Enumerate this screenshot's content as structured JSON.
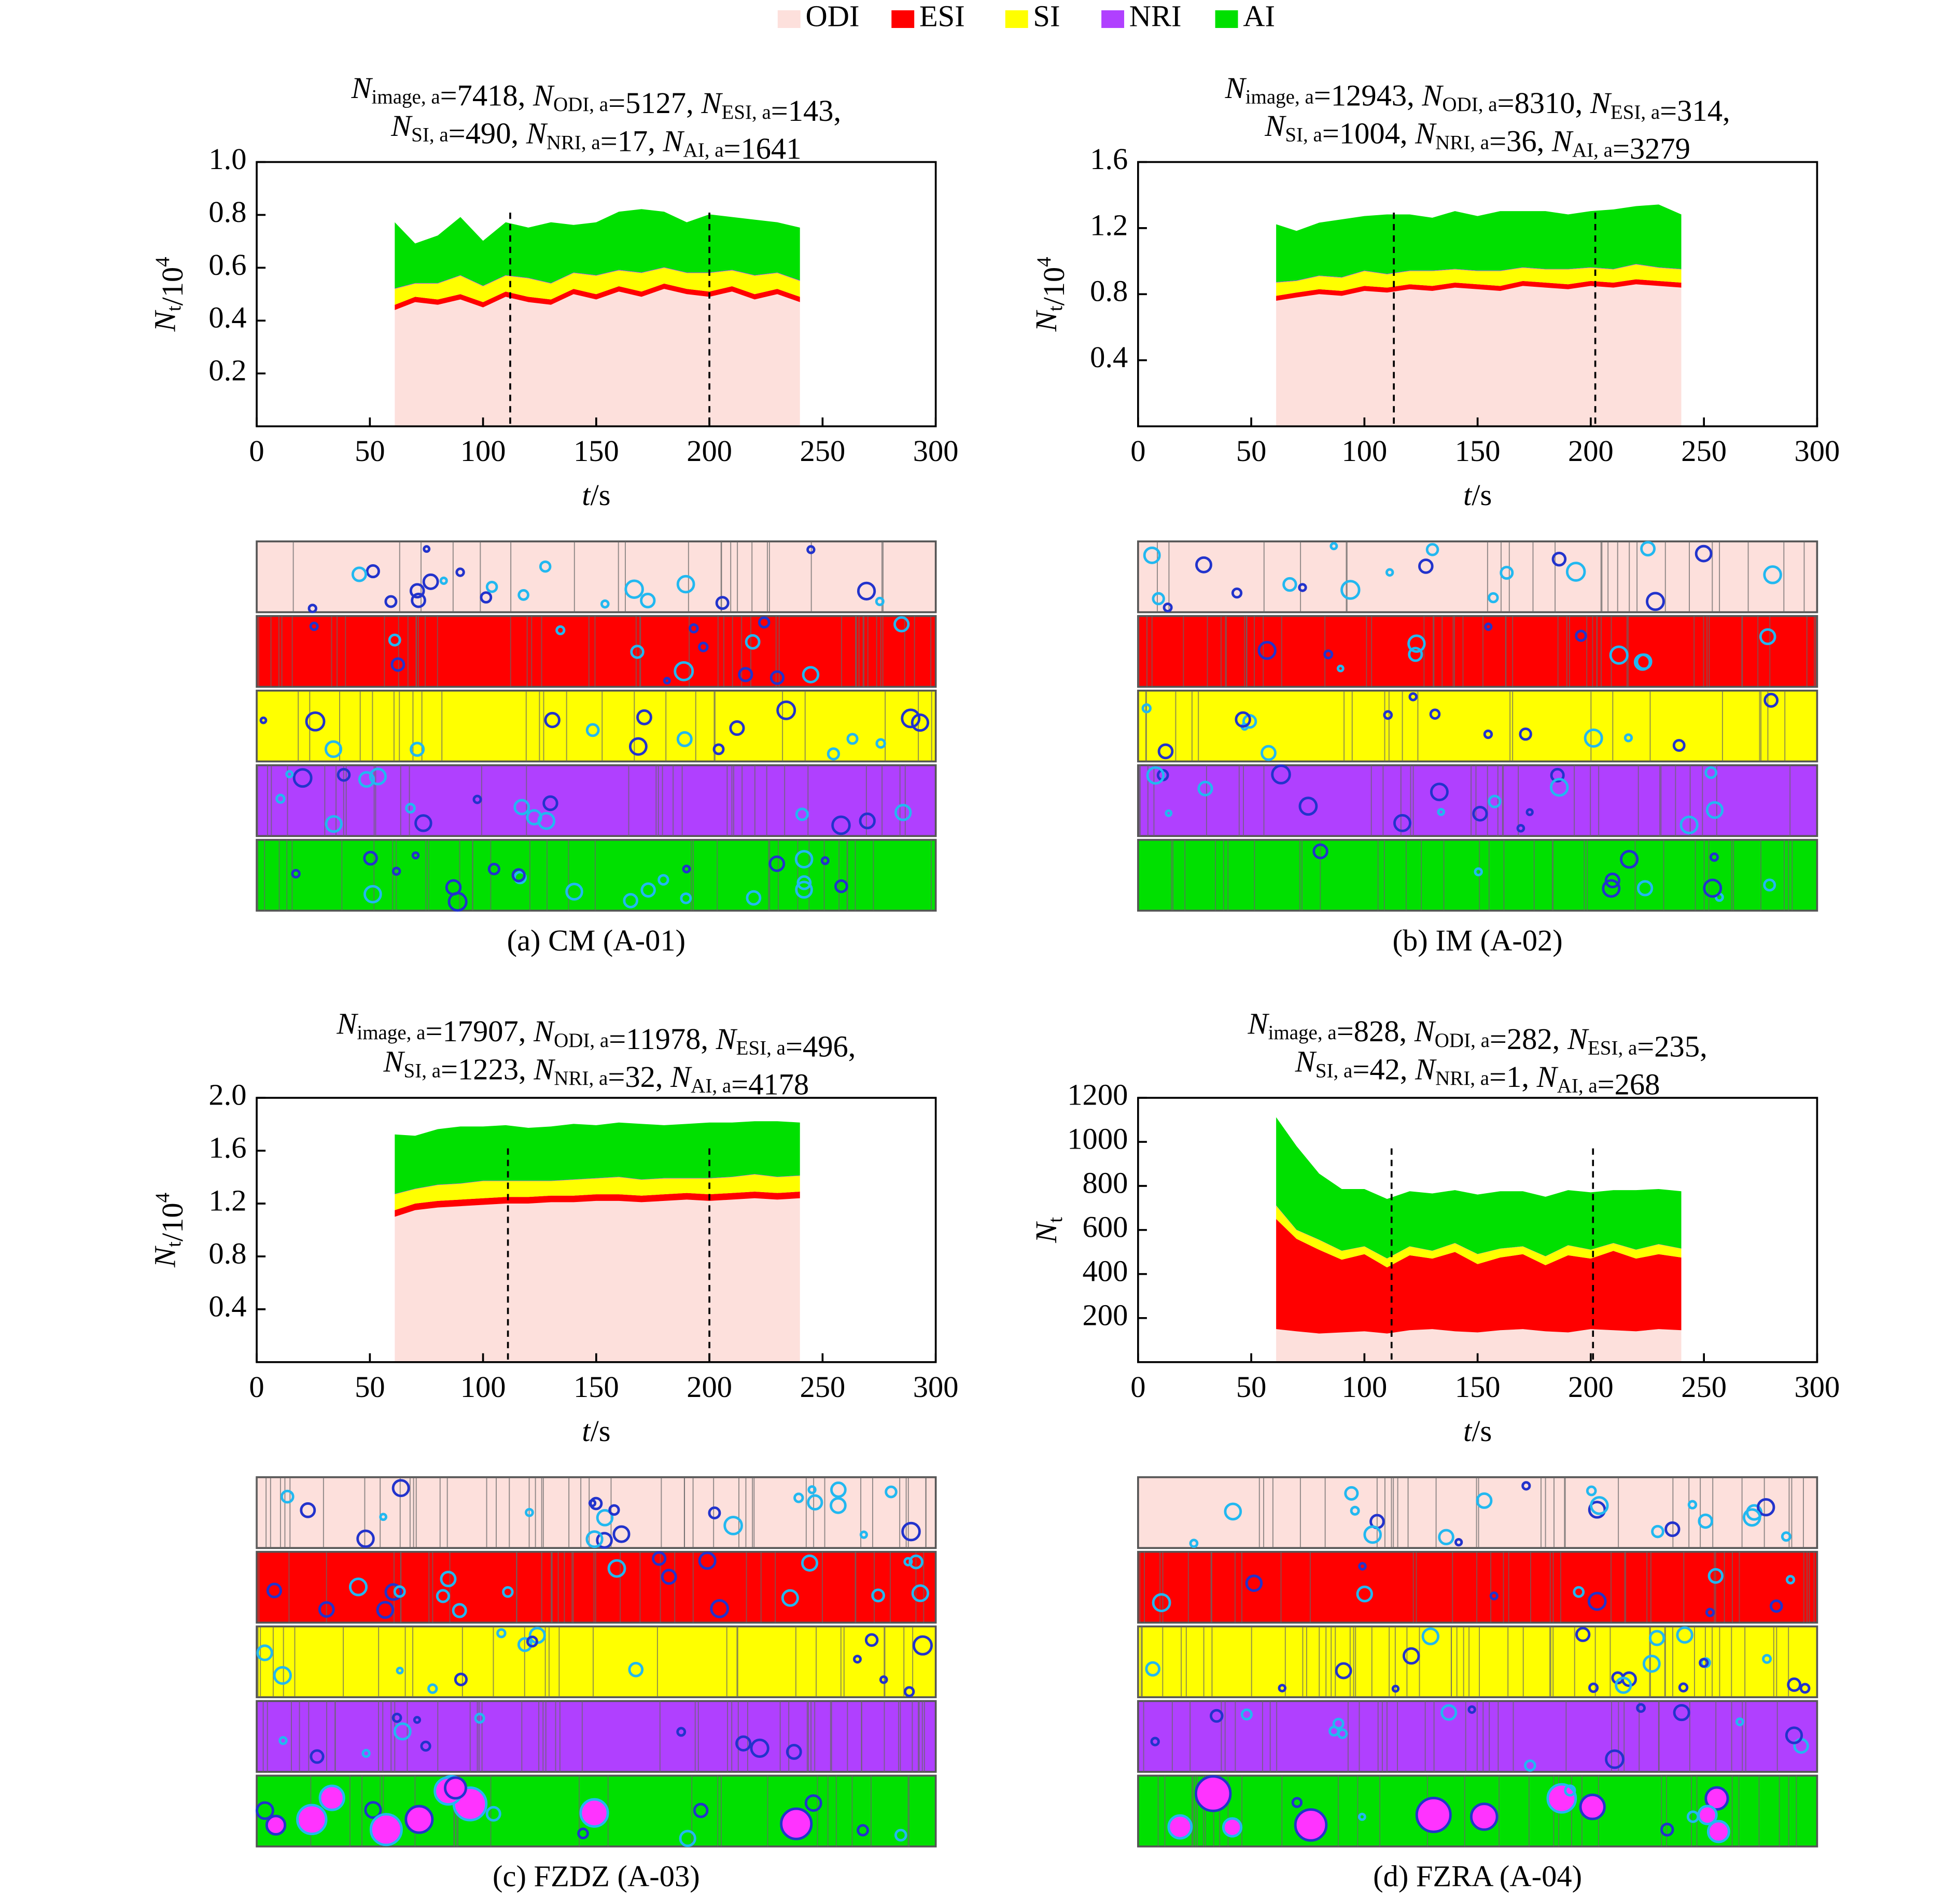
{
  "chart_data": [
    {
      "type": "stacked_area",
      "legend": "top",
      "title_lines": [
        [
          {
            "symbol": "N",
            "sub": "image, a",
            "text": "=7418, "
          },
          {
            "symbol": "N",
            "sub": "ODI, a",
            "text": "=5127, "
          },
          {
            "symbol": "N",
            "sub": "ESI, a",
            "text": "=143,"
          }
        ],
        [
          {
            "symbol": "N",
            "sub": "SI, a",
            "text": "=490, "
          },
          {
            "symbol": "N",
            "sub": "NRI, a",
            "text": "=17, "
          },
          {
            "symbol": "N",
            "sub": "AI, a",
            "text": "=1641"
          }
        ]
      ],
      "y_label": {
        "symbol": "N",
        "sub": "t",
        "text": "/10",
        "sup": "4"
      },
      "x_label": {
        "symbol": "t",
        "text": "/s"
      },
      "caption": "(a) CM (A-01)",
      "xlim": [
        0,
        300
      ],
      "xticks": [
        0,
        50,
        100,
        150,
        200,
        250,
        300
      ],
      "ylim": [
        0,
        1
      ],
      "yticks": [
        0.2,
        0.4,
        0.6,
        0.8,
        {
          "value": 1,
          "label": "1.0"
        }
      ],
      "markers_x": [
        112,
        200
      ],
      "x": [
        61,
        70,
        80,
        90,
        100,
        110,
        120,
        130,
        140,
        150,
        160,
        170,
        180,
        190,
        200,
        210,
        220,
        230,
        240
      ],
      "series": [
        {
          "name": "ODI",
          "color": "#fde0dc",
          "values": [
            0.44,
            0.47,
            0.46,
            0.48,
            0.45,
            0.49,
            0.47,
            0.46,
            0.5,
            0.48,
            0.51,
            0.49,
            0.52,
            0.5,
            0.49,
            0.51,
            0.48,
            0.5,
            0.47
          ]
        },
        {
          "name": "ESI",
          "color": "#ff0000",
          "values": [
            0.02,
            0.02,
            0.02,
            0.02,
            0.02,
            0.02,
            0.02,
            0.02,
            0.02,
            0.02,
            0.02,
            0.02,
            0.02,
            0.02,
            0.02,
            0.02,
            0.02,
            0.02,
            0.02
          ]
        },
        {
          "name": "SI",
          "color": "#ffff00",
          "values": [
            0.06,
            0.05,
            0.06,
            0.07,
            0.06,
            0.06,
            0.07,
            0.06,
            0.06,
            0.07,
            0.06,
            0.07,
            0.06,
            0.06,
            0.07,
            0.06,
            0.07,
            0.06,
            0.06
          ]
        },
        {
          "name": "NRI",
          "color": "#b040ff",
          "values": [
            0.002,
            0.002,
            0.002,
            0.002,
            0.002,
            0.002,
            0.002,
            0.002,
            0.002,
            0.002,
            0.002,
            0.002,
            0.002,
            0.002,
            0.002,
            0.002,
            0.002,
            0.002,
            0.002
          ]
        },
        {
          "name": "AI",
          "color": "#00e000",
          "values": [
            0.25,
            0.15,
            0.18,
            0.22,
            0.17,
            0.2,
            0.19,
            0.23,
            0.18,
            0.2,
            0.22,
            0.24,
            0.21,
            0.19,
            0.22,
            0.2,
            0.21,
            0.19,
            0.2
          ]
        }
      ]
    },
    {
      "type": "stacked_area",
      "title_lines": [
        [
          {
            "symbol": "N",
            "sub": "image, a",
            "text": "=12943, "
          },
          {
            "symbol": "N",
            "sub": "ODI, a",
            "text": "=8310, "
          },
          {
            "symbol": "N",
            "sub": "ESI, a",
            "text": "=314,"
          }
        ],
        [
          {
            "symbol": "N",
            "sub": "SI, a",
            "text": "=1004, "
          },
          {
            "symbol": "N",
            "sub": "NRI, a",
            "text": "=36, "
          },
          {
            "symbol": "N",
            "sub": "AI, a",
            "text": "=3279"
          }
        ]
      ],
      "y_label": {
        "symbol": "N",
        "sub": "t",
        "text": "/10",
        "sup": "4"
      },
      "x_label": {
        "symbol": "t",
        "text": "/s"
      },
      "caption": "(b) IM (A-02)",
      "xlim": [
        0,
        300
      ],
      "xticks": [
        0,
        50,
        100,
        150,
        200,
        250,
        300
      ],
      "ylim": [
        0,
        1.6
      ],
      "yticks": [
        0.4,
        0.8,
        1.2,
        1.6
      ],
      "markers_x": [
        113,
        202
      ],
      "x": [
        61,
        70,
        80,
        90,
        100,
        110,
        120,
        130,
        140,
        150,
        160,
        170,
        180,
        190,
        200,
        210,
        220,
        230,
        240
      ],
      "series": [
        {
          "name": "ODI",
          "color": "#fde0dc",
          "values": [
            0.76,
            0.78,
            0.8,
            0.79,
            0.82,
            0.81,
            0.83,
            0.82,
            0.84,
            0.83,
            0.82,
            0.85,
            0.84,
            0.83,
            0.85,
            0.84,
            0.86,
            0.85,
            0.84
          ]
        },
        {
          "name": "ESI",
          "color": "#ff0000",
          "values": [
            0.03,
            0.03,
            0.03,
            0.03,
            0.03,
            0.03,
            0.03,
            0.03,
            0.03,
            0.03,
            0.03,
            0.03,
            0.03,
            0.03,
            0.03,
            0.03,
            0.03,
            0.03,
            0.03
          ]
        },
        {
          "name": "SI",
          "color": "#ffff00",
          "values": [
            0.08,
            0.07,
            0.08,
            0.08,
            0.09,
            0.08,
            0.08,
            0.09,
            0.08,
            0.08,
            0.09,
            0.08,
            0.08,
            0.09,
            0.08,
            0.08,
            0.09,
            0.08,
            0.08
          ]
        },
        {
          "name": "NRI",
          "color": "#b040ff",
          "values": [
            0.003,
            0.003,
            0.003,
            0.003,
            0.003,
            0.003,
            0.003,
            0.003,
            0.003,
            0.003,
            0.003,
            0.003,
            0.003,
            0.003,
            0.003,
            0.003,
            0.003,
            0.003,
            0.003
          ]
        },
        {
          "name": "AI",
          "color": "#00e000",
          "values": [
            0.35,
            0.3,
            0.32,
            0.35,
            0.33,
            0.36,
            0.34,
            0.32,
            0.35,
            0.33,
            0.36,
            0.34,
            0.35,
            0.33,
            0.34,
            0.36,
            0.35,
            0.38,
            0.33
          ]
        }
      ]
    },
    {
      "type": "stacked_area",
      "title_lines": [
        [
          {
            "symbol": "N",
            "sub": "image, a",
            "text": "=17907, "
          },
          {
            "symbol": "N",
            "sub": "ODI, a",
            "text": "=11978, "
          },
          {
            "symbol": "N",
            "sub": "ESI, a",
            "text": "=496,"
          }
        ],
        [
          {
            "symbol": "N",
            "sub": "SI, a",
            "text": "=1223, "
          },
          {
            "symbol": "N",
            "sub": "NRI, a",
            "text": "=32, "
          },
          {
            "symbol": "N",
            "sub": "AI, a",
            "text": "=4178"
          }
        ]
      ],
      "y_label": {
        "symbol": "N",
        "sub": "t",
        "text": "/10",
        "sup": "4"
      },
      "x_label": {
        "symbol": "t",
        "text": "/s"
      },
      "caption": "(c) FZDZ (A-03)",
      "xlim": [
        0,
        300
      ],
      "xticks": [
        0,
        50,
        100,
        150,
        200,
        250,
        300
      ],
      "ylim": [
        0,
        2
      ],
      "yticks": [
        0.4,
        0.8,
        1.2,
        1.6,
        {
          "value": 2,
          "label": "2.0"
        }
      ],
      "markers_x": [
        111,
        200
      ],
      "x": [
        61,
        70,
        80,
        90,
        100,
        110,
        120,
        130,
        140,
        150,
        160,
        170,
        180,
        190,
        200,
        210,
        220,
        230,
        240
      ],
      "series": [
        {
          "name": "ODI",
          "color": "#fde0dc",
          "values": [
            1.1,
            1.15,
            1.17,
            1.18,
            1.19,
            1.2,
            1.2,
            1.21,
            1.21,
            1.22,
            1.22,
            1.21,
            1.22,
            1.23,
            1.22,
            1.23,
            1.24,
            1.23,
            1.24
          ]
        },
        {
          "name": "ESI",
          "color": "#ff0000",
          "values": [
            0.05,
            0.05,
            0.05,
            0.05,
            0.05,
            0.05,
            0.05,
            0.05,
            0.05,
            0.05,
            0.05,
            0.05,
            0.05,
            0.05,
            0.05,
            0.05,
            0.05,
            0.05,
            0.05
          ]
        },
        {
          "name": "SI",
          "color": "#ffff00",
          "values": [
            0.12,
            0.11,
            0.12,
            0.12,
            0.13,
            0.12,
            0.12,
            0.11,
            0.12,
            0.12,
            0.13,
            0.12,
            0.12,
            0.11,
            0.12,
            0.12,
            0.13,
            0.12,
            0.12
          ]
        },
        {
          "name": "NRI",
          "color": "#b040ff",
          "values": [
            0.003,
            0.003,
            0.003,
            0.003,
            0.003,
            0.003,
            0.003,
            0.003,
            0.003,
            0.003,
            0.003,
            0.003,
            0.003,
            0.003,
            0.003,
            0.003,
            0.003,
            0.003,
            0.003
          ]
        },
        {
          "name": "AI",
          "color": "#00e000",
          "values": [
            0.45,
            0.4,
            0.42,
            0.43,
            0.41,
            0.42,
            0.4,
            0.41,
            0.42,
            0.4,
            0.41,
            0.42,
            0.4,
            0.41,
            0.42,
            0.41,
            0.4,
            0.42,
            0.4
          ]
        }
      ]
    },
    {
      "type": "stacked_area",
      "title_lines": [
        [
          {
            "symbol": "N",
            "sub": "image, a",
            "text": "=828, "
          },
          {
            "symbol": "N",
            "sub": "ODI, a",
            "text": "=282, "
          },
          {
            "symbol": "N",
            "sub": "ESI, a",
            "text": "=235,"
          }
        ],
        [
          {
            "symbol": "N",
            "sub": "SI, a",
            "text": "=42, "
          },
          {
            "symbol": "N",
            "sub": "NRI, a",
            "text": "=1, "
          },
          {
            "symbol": "N",
            "sub": "AI, a",
            "text": "=268"
          }
        ]
      ],
      "y_label": {
        "symbol": "N",
        "sub": "t"
      },
      "x_label": {
        "symbol": "t",
        "text": "/s"
      },
      "caption": "(d) FZRA (A-04)",
      "xlim": [
        0,
        300
      ],
      "xticks": [
        0,
        50,
        100,
        150,
        200,
        250,
        300
      ],
      "ylim": [
        0,
        1200
      ],
      "yticks": [
        200,
        400,
        600,
        800,
        1000,
        1200
      ],
      "markers_x": [
        112,
        201
      ],
      "x": [
        61,
        70,
        80,
        90,
        100,
        110,
        120,
        130,
        140,
        150,
        160,
        170,
        180,
        190,
        200,
        210,
        220,
        230,
        240
      ],
      "series": [
        {
          "name": "ODI",
          "color": "#fde0dc",
          "values": [
            150,
            140,
            130,
            135,
            140,
            130,
            145,
            150,
            140,
            135,
            145,
            150,
            140,
            135,
            150,
            145,
            140,
            150,
            145
          ]
        },
        {
          "name": "ESI",
          "color": "#ff0000",
          "values": [
            500,
            420,
            380,
            330,
            350,
            300,
            340,
            320,
            360,
            310,
            330,
            340,
            300,
            350,
            320,
            360,
            330,
            340,
            330
          ]
        },
        {
          "name": "SI",
          "color": "#ffff00",
          "values": [
            60,
            40,
            45,
            40,
            35,
            40,
            40,
            35,
            40,
            45,
            40,
            35,
            40,
            45,
            40,
            35,
            40,
            45,
            40
          ]
        },
        {
          "name": "NRI",
          "color": "#b040ff",
          "values": [
            2,
            1,
            1,
            1,
            1,
            1,
            1,
            1,
            1,
            1,
            1,
            1,
            1,
            1,
            1,
            1,
            1,
            1,
            1
          ]
        },
        {
          "name": "AI",
          "color": "#00e000",
          "values": [
            400,
            380,
            300,
            280,
            260,
            270,
            250,
            260,
            240,
            270,
            260,
            250,
            270,
            250,
            260,
            240,
            270,
            250,
            260
          ]
        }
      ]
    }
  ]
}
